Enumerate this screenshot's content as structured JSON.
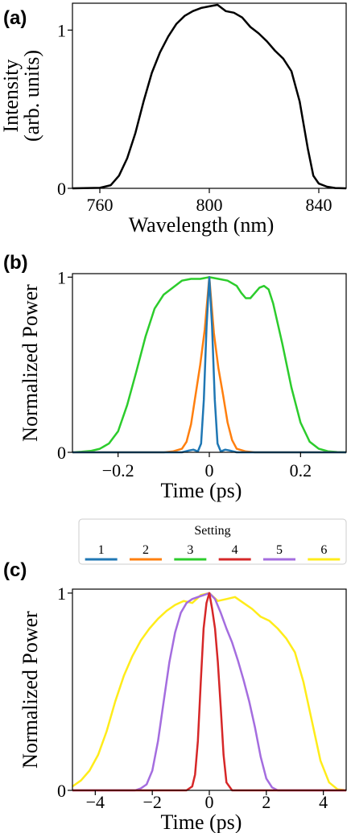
{
  "chart_data": [
    {
      "panel": "(a)",
      "type": "line",
      "xlabel": "Wavelength (nm)",
      "ylabel_lines": [
        "Intensity",
        "(arb. units)"
      ],
      "xlim": [
        750,
        850
      ],
      "ylim": [
        0,
        1.17
      ],
      "xticks": [
        {
          "v": 760,
          "label": "760"
        },
        {
          "v": 800,
          "label": "800"
        },
        {
          "v": 840,
          "label": "840"
        }
      ],
      "yticks": [
        {
          "v": 0,
          "label": "0"
        },
        {
          "v": 1,
          "label": "1"
        }
      ],
      "series": [
        {
          "color": "#000000",
          "x": [
            750,
            760,
            764,
            767,
            770,
            773,
            776,
            779,
            782,
            785,
            788,
            791,
            794,
            797,
            800,
            803,
            806,
            809,
            812,
            815,
            818,
            821,
            824,
            827,
            830,
            833,
            836,
            838,
            840,
            843,
            846,
            850
          ],
          "y": [
            0.0,
            0.003,
            0.02,
            0.08,
            0.19,
            0.35,
            0.55,
            0.73,
            0.86,
            0.96,
            1.04,
            1.09,
            1.12,
            1.14,
            1.15,
            1.16,
            1.12,
            1.11,
            1.08,
            1.02,
            0.98,
            0.93,
            0.87,
            0.82,
            0.74,
            0.55,
            0.25,
            0.08,
            0.03,
            0.01,
            0.002,
            0.0
          ]
        }
      ]
    },
    {
      "panel": "(b)",
      "type": "line",
      "xlabel": "Time (ps)",
      "ylabel_lines": [
        "Normalized Power"
      ],
      "xlim": [
        -0.3,
        0.3
      ],
      "ylim": [
        0,
        1.02
      ],
      "xticks": [
        {
          "v": -0.2,
          "label": "−0.2"
        },
        {
          "v": 0,
          "label": "0"
        },
        {
          "v": 0.2,
          "label": "0.2"
        }
      ],
      "yticks": [
        {
          "v": 0,
          "label": "0"
        },
        {
          "v": 1,
          "label": "1"
        }
      ],
      "series": [
        {
          "color": "#2ccc2c",
          "x": [
            -0.3,
            -0.28,
            -0.26,
            -0.24,
            -0.22,
            -0.2,
            -0.18,
            -0.16,
            -0.14,
            -0.12,
            -0.1,
            -0.08,
            -0.06,
            -0.04,
            -0.02,
            0,
            0.02,
            0.04,
            0.06,
            0.07,
            0.08,
            0.09,
            0.1,
            0.11,
            0.12,
            0.13,
            0.14,
            0.16,
            0.18,
            0.2,
            0.22,
            0.24,
            0.26,
            0.28,
            0.3
          ],
          "y": [
            0.0,
            0.003,
            0.008,
            0.02,
            0.05,
            0.12,
            0.27,
            0.46,
            0.66,
            0.82,
            0.9,
            0.94,
            0.98,
            0.99,
            0.99,
            1.0,
            0.99,
            0.98,
            0.95,
            0.91,
            0.88,
            0.88,
            0.91,
            0.94,
            0.95,
            0.93,
            0.85,
            0.62,
            0.37,
            0.17,
            0.06,
            0.02,
            0.006,
            0.002,
            0.0
          ]
        },
        {
          "color": "#ff7f0e",
          "x": [
            -0.3,
            -0.1,
            -0.08,
            -0.06,
            -0.05,
            -0.04,
            -0.03,
            -0.02,
            -0.01,
            0,
            0.01,
            0.02,
            0.03,
            0.04,
            0.05,
            0.06,
            0.08,
            0.1,
            0.3
          ],
          "y": [
            0.0,
            0.0,
            0.005,
            0.02,
            0.06,
            0.16,
            0.33,
            0.5,
            0.7,
            1.0,
            0.68,
            0.48,
            0.33,
            0.17,
            0.07,
            0.02,
            0.005,
            0.0,
            0.0
          ]
        },
        {
          "color": "#1f77b4",
          "x": [
            -0.3,
            -0.06,
            -0.045,
            -0.035,
            -0.025,
            -0.018,
            -0.012,
            -0.006,
            0,
            0.006,
            0.012,
            0.018,
            0.025,
            0.035,
            0.045,
            0.06,
            0.3
          ],
          "y": [
            0.0,
            0.0,
            0.01,
            0.015,
            0.005,
            0.05,
            0.3,
            0.72,
            1.0,
            0.72,
            0.3,
            0.05,
            0.005,
            0.015,
            0.01,
            0.0,
            0.0
          ]
        }
      ]
    },
    {
      "panel": "(c)",
      "type": "line",
      "xlabel": "Time (ps)",
      "ylabel_lines": [
        "Normalized Power"
      ],
      "xlim": [
        -4.8,
        4.8
      ],
      "ylim": [
        0,
        1.02
      ],
      "xticks": [
        {
          "v": -4,
          "label": "−4"
        },
        {
          "v": -2,
          "label": "−2"
        },
        {
          "v": 0,
          "label": "0"
        },
        {
          "v": 2,
          "label": "2"
        },
        {
          "v": 4,
          "label": "4"
        }
      ],
      "yticks": [
        {
          "v": 0,
          "label": "0"
        },
        {
          "v": 1,
          "label": "1"
        }
      ],
      "series": [
        {
          "color": "#ffec1a",
          "x": [
            -4.8,
            -4.5,
            -4.2,
            -3.9,
            -3.6,
            -3.3,
            -3.0,
            -2.7,
            -2.4,
            -2.1,
            -1.8,
            -1.5,
            -1.2,
            -0.9,
            -0.6,
            -0.3,
            0,
            0.3,
            0.6,
            0.9,
            1.2,
            1.5,
            1.8,
            2.1,
            2.4,
            2.7,
            3.0,
            3.3,
            3.6,
            3.9,
            4.2,
            4.5,
            4.8
          ],
          "y": [
            0.02,
            0.05,
            0.1,
            0.18,
            0.3,
            0.45,
            0.58,
            0.68,
            0.76,
            0.82,
            0.87,
            0.91,
            0.94,
            0.96,
            0.95,
            0.99,
            1.0,
            0.96,
            0.97,
            0.98,
            0.95,
            0.92,
            0.88,
            0.86,
            0.82,
            0.77,
            0.7,
            0.55,
            0.35,
            0.15,
            0.04,
            0.005,
            0.0
          ]
        },
        {
          "color": "#a46ddf",
          "x": [
            -4.8,
            -2.6,
            -2.4,
            -2.2,
            -2.0,
            -1.8,
            -1.6,
            -1.4,
            -1.2,
            -1.0,
            -0.8,
            -0.6,
            -0.4,
            -0.2,
            0,
            0.2,
            0.4,
            0.6,
            0.8,
            1.0,
            1.2,
            1.4,
            1.6,
            1.8,
            2.0,
            2.2,
            2.4,
            4.8
          ],
          "y": [
            0.0,
            0.0,
            0.01,
            0.03,
            0.1,
            0.25,
            0.45,
            0.65,
            0.8,
            0.9,
            0.95,
            0.97,
            0.98,
            0.99,
            1.0,
            0.97,
            0.9,
            0.82,
            0.75,
            0.66,
            0.56,
            0.45,
            0.32,
            0.17,
            0.06,
            0.015,
            0.0,
            0.0
          ]
        },
        {
          "color": "#d62728",
          "x": [
            -4.8,
            -0.8,
            -0.6,
            -0.5,
            -0.4,
            -0.3,
            -0.2,
            -0.1,
            0,
            0.1,
            0.2,
            0.3,
            0.4,
            0.5,
            0.6,
            0.8,
            4.8
          ],
          "y": [
            0.0,
            0.0,
            0.02,
            0.08,
            0.25,
            0.55,
            0.82,
            0.95,
            1.0,
            0.92,
            0.82,
            0.65,
            0.42,
            0.18,
            0.04,
            0.0,
            0.0
          ]
        }
      ]
    }
  ],
  "legend": {
    "title": "Setting",
    "placement": "between panels (b) and (c)",
    "entries": [
      {
        "label": "1",
        "color": "#1f77b4"
      },
      {
        "label": "2",
        "color": "#ff7f0e"
      },
      {
        "label": "3",
        "color": "#2ccc2c"
      },
      {
        "label": "4",
        "color": "#d62728"
      },
      {
        "label": "5",
        "color": "#a46ddf"
      },
      {
        "label": "6",
        "color": "#ffec1a"
      }
    ]
  }
}
